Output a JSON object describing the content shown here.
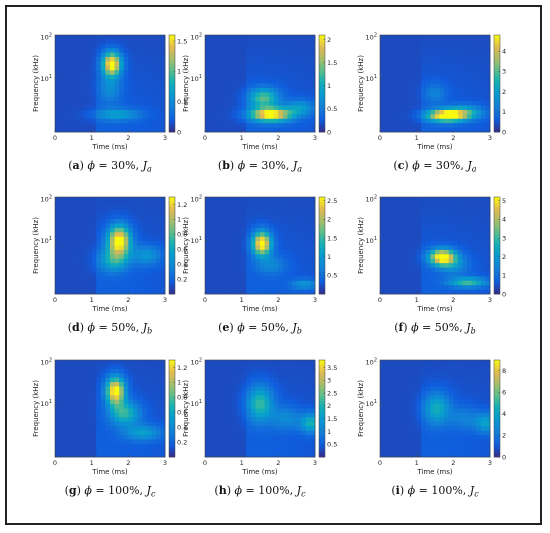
{
  "chart_data": [
    {
      "type": "heatmap",
      "caption": {
        "letter": "a",
        "phi": "30%",
        "J": "J",
        "sub": "a"
      },
      "xlabel": "Time (ms)",
      "ylabel": "Frequency (kHz)",
      "xticks": [
        "0",
        "1",
        "2",
        "3"
      ],
      "yticks": [
        {
          "base": "10",
          "exp": "1"
        },
        {
          "base": "10",
          "exp": "2"
        }
      ],
      "colorbar": {
        "ticks": [
          "0",
          "0.5",
          "1",
          "1.5"
        ],
        "max": 1.6
      },
      "peaks": [
        {
          "t": 1.55,
          "f": 0.7,
          "amp": 1.55,
          "w": 0.25,
          "h": 0.12
        },
        {
          "t": 1.7,
          "f": 0.18,
          "amp": 0.5,
          "w": 0.6,
          "h": 0.06
        },
        {
          "t": 1.5,
          "f": 0.45,
          "amp": 0.35,
          "w": 0.3,
          "h": 0.15
        }
      ]
    },
    {
      "type": "heatmap",
      "caption": {
        "letter": "b",
        "phi": "30%",
        "J": "J",
        "sub": "a"
      },
      "xlabel": "Time (ms)",
      "ylabel": "Frequency (kHz)",
      "xticks": [
        "0",
        "1",
        "2",
        "3"
      ],
      "yticks": [
        {
          "base": "10",
          "exp": "1"
        },
        {
          "base": "10",
          "exp": "2"
        }
      ],
      "colorbar": {
        "ticks": [
          "0",
          "0.5",
          "1",
          "1.5",
          "2"
        ],
        "max": 2.1
      },
      "peaks": [
        {
          "t": 1.8,
          "f": 0.18,
          "amp": 2.0,
          "w": 0.55,
          "h": 0.07
        },
        {
          "t": 1.6,
          "f": 0.35,
          "amp": 1.1,
          "w": 0.4,
          "h": 0.1
        },
        {
          "t": 2.6,
          "f": 0.25,
          "amp": 0.6,
          "w": 0.4,
          "h": 0.08
        }
      ]
    },
    {
      "type": "heatmap",
      "caption": {
        "letter": "c",
        "phi": "30%",
        "J": "J",
        "sub": "a"
      },
      "xlabel": "Time (ms)",
      "ylabel": "Frequency (kHz)",
      "xticks": [
        "0",
        "1",
        "2",
        "3"
      ],
      "yticks": [
        {
          "base": "10",
          "exp": "1"
        },
        {
          "base": "10",
          "exp": "2"
        }
      ],
      "colorbar": {
        "ticks": [
          "0",
          "1",
          "2",
          "3",
          "4"
        ],
        "max": 4.8
      },
      "peaks": [
        {
          "t": 1.8,
          "f": 0.17,
          "amp": 4.7,
          "w": 0.5,
          "h": 0.06
        },
        {
          "t": 2.3,
          "f": 0.2,
          "amp": 2.0,
          "w": 0.5,
          "h": 0.07
        },
        {
          "t": 1.5,
          "f": 0.4,
          "amp": 0.8,
          "w": 0.3,
          "h": 0.1
        }
      ]
    },
    {
      "type": "heatmap",
      "caption": {
        "letter": "d",
        "phi": "50%",
        "J": "J",
        "sub": "b"
      },
      "xlabel": "Time (ms)",
      "ylabel": "Frequency (kHz)",
      "xticks": [
        "0",
        "1",
        "2",
        "3"
      ],
      "yticks": [
        {
          "base": "10",
          "exp": "1"
        },
        {
          "base": "10",
          "exp": "2"
        }
      ],
      "colorbar": {
        "ticks": [
          "0.2",
          "0.4",
          "0.6",
          "0.8",
          "1",
          "1.2"
        ],
        "max": 1.3
      },
      "peaks": [
        {
          "t": 1.75,
          "f": 0.55,
          "amp": 1.25,
          "w": 0.3,
          "h": 0.15
        },
        {
          "t": 1.6,
          "f": 0.35,
          "amp": 0.5,
          "w": 0.4,
          "h": 0.12
        },
        {
          "t": 2.5,
          "f": 0.4,
          "amp": 0.35,
          "w": 0.4,
          "h": 0.1
        }
      ]
    },
    {
      "type": "heatmap",
      "caption": {
        "letter": "e",
        "phi": "50%",
        "J": "J",
        "sub": "b"
      },
      "xlabel": "Time (ms)",
      "ylabel": "Frequency (kHz)",
      "xticks": [
        "0",
        "1",
        "2",
        "3"
      ],
      "yticks": [
        {
          "base": "10",
          "exp": "1"
        },
        {
          "base": "10",
          "exp": "2"
        }
      ],
      "colorbar": {
        "ticks": [
          "0.5",
          "1",
          "1.5",
          "2",
          "2.5"
        ],
        "max": 2.6
      },
      "peaks": [
        {
          "t": 1.55,
          "f": 0.52,
          "amp": 2.5,
          "w": 0.25,
          "h": 0.12
        },
        {
          "t": 2.7,
          "f": 0.1,
          "amp": 0.7,
          "w": 0.35,
          "h": 0.05
        },
        {
          "t": 1.8,
          "f": 0.3,
          "amp": 0.5,
          "w": 0.4,
          "h": 0.1
        }
      ]
    },
    {
      "type": "heatmap",
      "caption": {
        "letter": "f",
        "phi": "50%",
        "J": "J",
        "sub": "b"
      },
      "xlabel": "Time (ms)",
      "ylabel": "Frequency (kHz)",
      "xticks": [
        "0",
        "1",
        "2",
        "3"
      ],
      "yticks": [
        {
          "base": "10",
          "exp": "1"
        },
        {
          "base": "10",
          "exp": "2"
        }
      ],
      "colorbar": {
        "ticks": [
          "0",
          "1",
          "2",
          "3",
          "4",
          "5"
        ],
        "max": 5.2
      },
      "peaks": [
        {
          "t": 1.7,
          "f": 0.38,
          "amp": 5.0,
          "w": 0.35,
          "h": 0.08
        },
        {
          "t": 2.4,
          "f": 0.12,
          "amp": 2.5,
          "w": 0.5,
          "h": 0.05
        },
        {
          "t": 2.0,
          "f": 0.3,
          "amp": 1.2,
          "w": 0.4,
          "h": 0.1
        }
      ]
    },
    {
      "type": "heatmap",
      "caption": {
        "letter": "g",
        "phi": "100%",
        "J": "J",
        "sub": "c"
      },
      "xlabel": "Time (ms)",
      "ylabel": "Frequency (kHz)",
      "xticks": [
        "0",
        "1",
        "2",
        "3"
      ],
      "yticks": [
        {
          "base": "10",
          "exp": "1"
        },
        {
          "base": "10",
          "exp": "2"
        }
      ],
      "colorbar": {
        "ticks": [
          "0.2",
          "0.4",
          "0.6",
          "0.8",
          "1",
          "1.2"
        ],
        "max": 1.3
      },
      "peaks": [
        {
          "t": 1.65,
          "f": 0.68,
          "amp": 1.25,
          "w": 0.25,
          "h": 0.14
        },
        {
          "t": 1.9,
          "f": 0.45,
          "amp": 0.6,
          "w": 0.4,
          "h": 0.12
        },
        {
          "t": 2.4,
          "f": 0.25,
          "amp": 0.4,
          "w": 0.5,
          "h": 0.08
        }
      ]
    },
    {
      "type": "heatmap",
      "caption": {
        "letter": "h",
        "phi": "100%",
        "J": "J",
        "sub": "c"
      },
      "xlabel": "Time (ms)",
      "ylabel": "Frequency (kHz)",
      "xticks": [
        "0",
        "1",
        "2",
        "3"
      ],
      "yticks": [
        {
          "base": "10",
          "exp": "1"
        },
        {
          "base": "10",
          "exp": "2"
        }
      ],
      "colorbar": {
        "ticks": [
          "0.5",
          "1",
          "1.5",
          "2",
          "2.5",
          "3",
          "3.5"
        ],
        "max": 3.8
      },
      "peaks": [
        {
          "t": 1.5,
          "f": 0.55,
          "amp": 1.8,
          "w": 0.35,
          "h": 0.18
        },
        {
          "t": 2.9,
          "f": 0.35,
          "amp": 1.6,
          "w": 0.3,
          "h": 0.1
        },
        {
          "t": 2.2,
          "f": 0.4,
          "amp": 0.8,
          "w": 0.4,
          "h": 0.12
        }
      ]
    },
    {
      "type": "heatmap",
      "caption": {
        "letter": "i",
        "phi": "100%",
        "J": "J",
        "sub": "c"
      },
      "xlabel": "Time (ms)",
      "ylabel": "Frequency (kHz)",
      "xticks": [
        "0",
        "1",
        "2",
        "3"
      ],
      "yticks": [
        {
          "base": "10",
          "exp": "1"
        },
        {
          "base": "10",
          "exp": "2"
        }
      ],
      "colorbar": {
        "ticks": [
          "0",
          "2",
          "4",
          "6",
          "8"
        ],
        "max": 9
      },
      "peaks": [
        {
          "t": 1.55,
          "f": 0.5,
          "amp": 3.5,
          "w": 0.35,
          "h": 0.16
        },
        {
          "t": 2.9,
          "f": 0.35,
          "amp": 3.0,
          "w": 0.3,
          "h": 0.1
        },
        {
          "t": 2.3,
          "f": 0.4,
          "amp": 1.5,
          "w": 0.4,
          "h": 0.12
        }
      ]
    }
  ]
}
